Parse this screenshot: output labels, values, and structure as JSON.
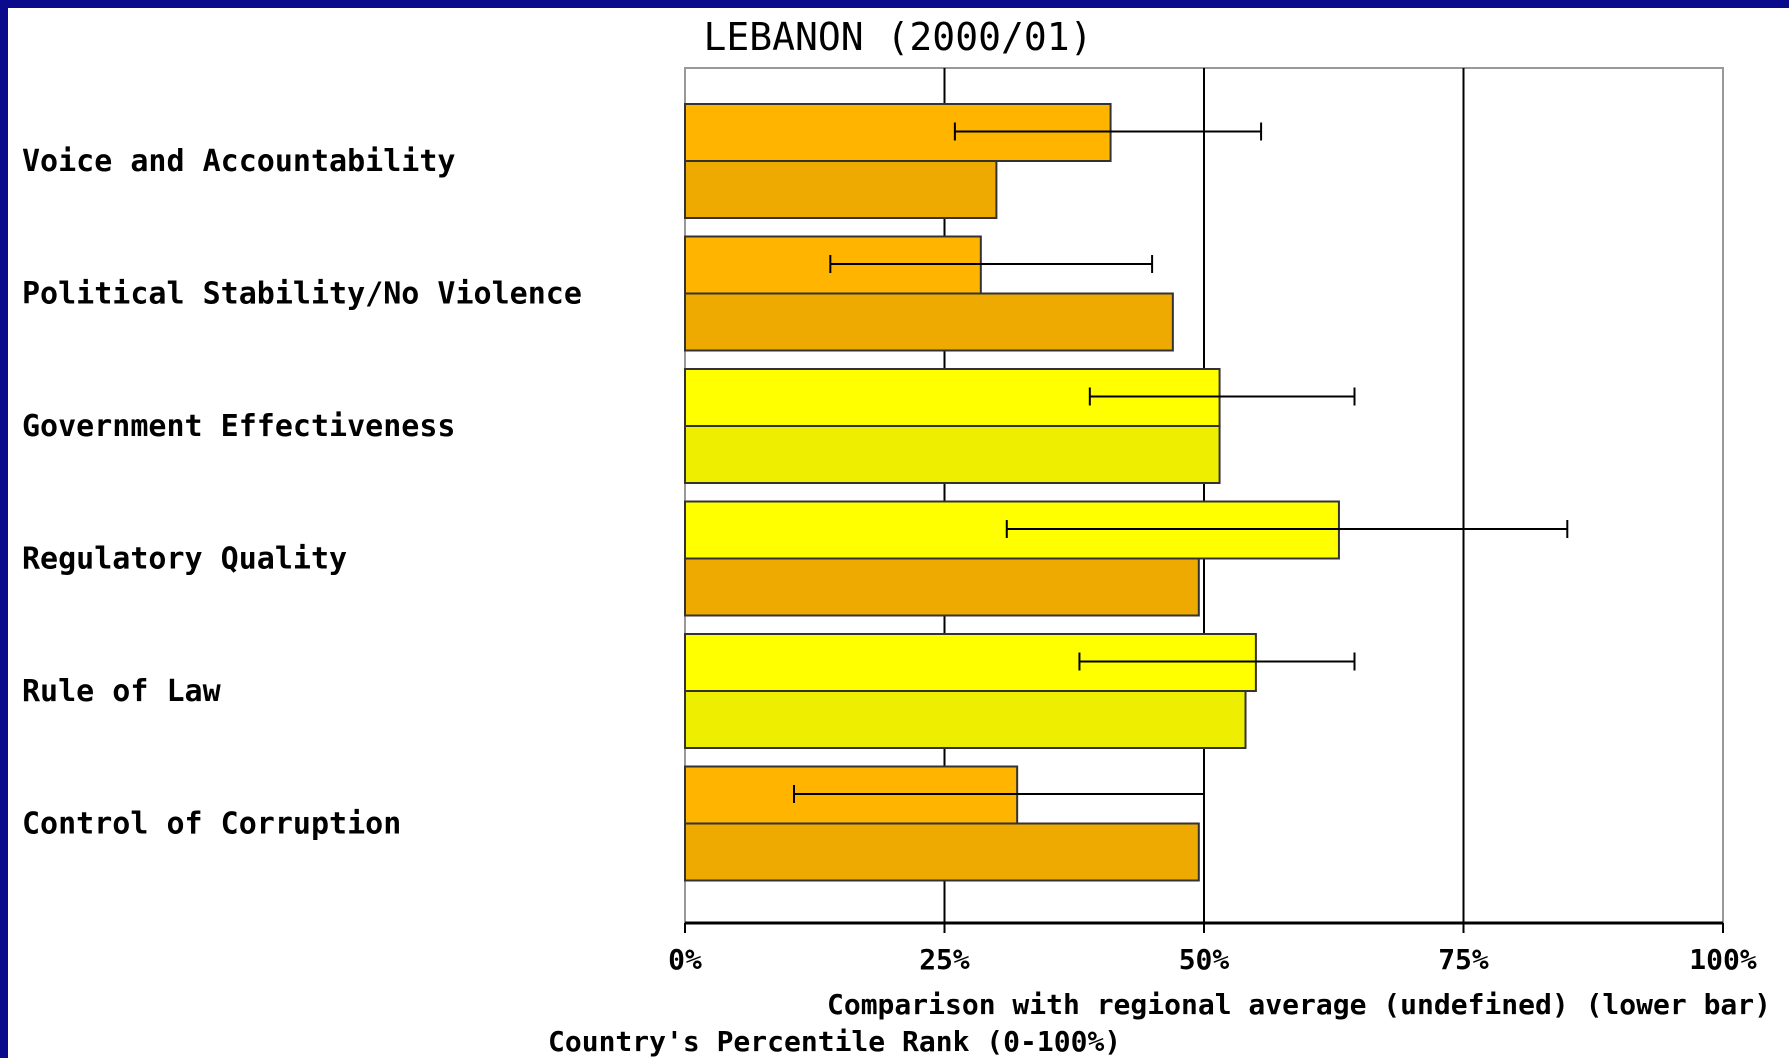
{
  "chart_data": {
    "type": "bar",
    "title": "LEBANON (2000/01)",
    "categories": [
      "Voice and Accountability",
      "Political Stability/No Violence",
      "Government Effectiveness",
      "Regulatory Quality",
      "Rule of Law",
      "Control of Corruption"
    ],
    "series": [
      {
        "values": [
          41,
          28.5,
          51.5,
          63,
          55,
          32
        ],
        "error_low": [
          26,
          14,
          39,
          31,
          38,
          10.5
        ],
        "error_high": [
          55.5,
          45,
          64.5,
          85,
          64.5,
          50
        ],
        "colors": [
          "#ffb400",
          "#ffb400",
          "#ffff00",
          "#ffff00",
          "#ffff00",
          "#ffb400"
        ]
      },
      {
        "values": [
          30,
          47,
          51.5,
          49.5,
          54,
          49.5
        ],
        "colors": [
          "#eeaa00",
          "#eeaa00",
          "#eeee00",
          "#eeaa00",
          "#eeee00",
          "#eeaa00"
        ]
      }
    ],
    "xlim": [
      0,
      100
    ],
    "x_ticks": [
      "0%",
      "25%",
      "50%",
      "75%",
      "100%"
    ],
    "xlabel_line1": "Comparison with regional average (undefined) (lower bar)",
    "xlabel_line2": "Country's Percentile Rank (0-100%)",
    "grid": true,
    "orientation": "horizontal"
  }
}
